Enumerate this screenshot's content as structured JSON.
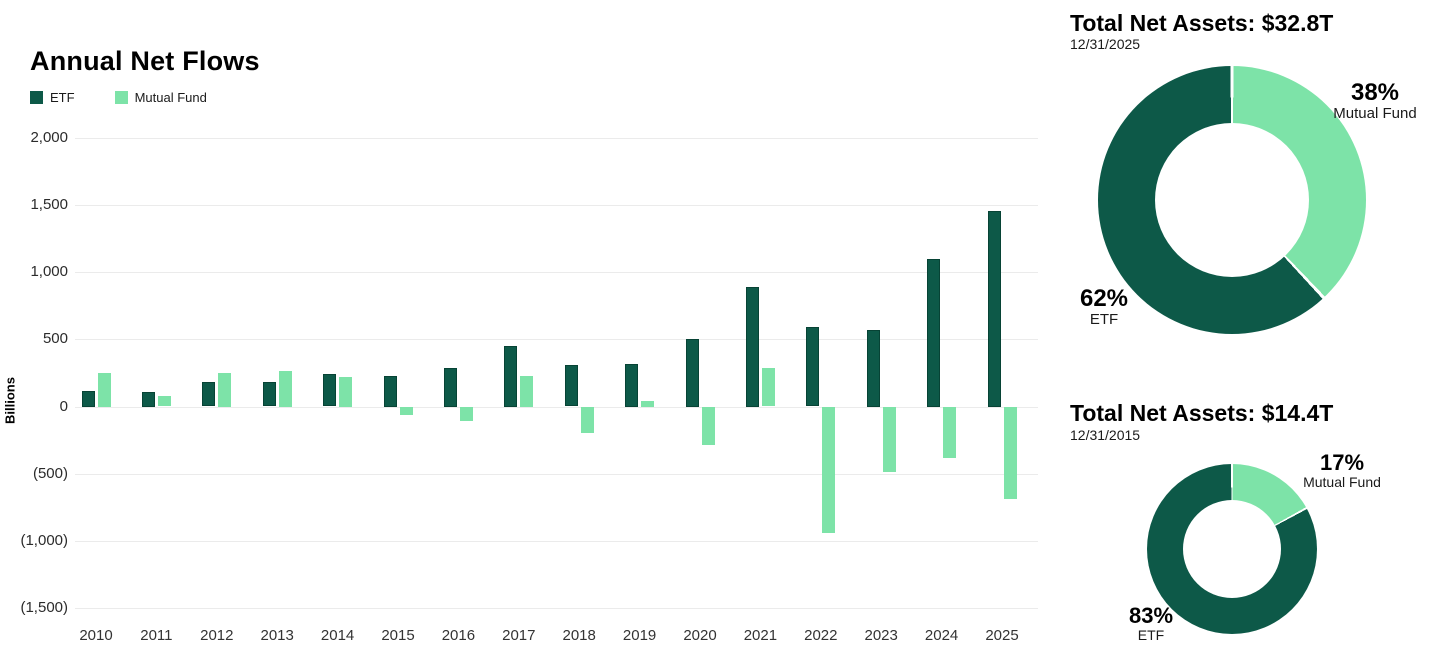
{
  "chart_data": [
    {
      "type": "bar",
      "title": "Annual Net Flows",
      "xlabel": "",
      "ylabel": "Billions",
      "ylim": [
        -1500,
        2000
      ],
      "grid": true,
      "legend_position": "top-left",
      "categories": [
        "2010",
        "2011",
        "2012",
        "2013",
        "2014",
        "2015",
        "2016",
        "2017",
        "2018",
        "2019",
        "2020",
        "2021",
        "2022",
        "2023",
        "2024",
        "2025"
      ],
      "series": [
        {
          "name": "ETF",
          "color": "#0d5948",
          "values": [
            120,
            110,
            185,
            185,
            240,
            230,
            285,
            455,
            310,
            320,
            505,
            890,
            590,
            570,
            1100,
            1455
          ]
        },
        {
          "name": "Mutual Fund",
          "color": "#7de3a8",
          "values": [
            250,
            80,
            250,
            265,
            220,
            -60,
            -105,
            230,
            -195,
            45,
            -290,
            290,
            -940,
            -490,
            -385,
            -690
          ]
        }
      ],
      "yticks": [
        {
          "value": 2000,
          "label": "2,000"
        },
        {
          "value": 1500,
          "label": "1,500"
        },
        {
          "value": 1000,
          "label": "1,000"
        },
        {
          "value": 500,
          "label": "500"
        },
        {
          "value": 0,
          "label": "0"
        },
        {
          "value": -500,
          "label": "(500)"
        },
        {
          "value": -1000,
          "label": "(1,000)"
        },
        {
          "value": -1500,
          "label": "(1,500)"
        }
      ]
    },
    {
      "type": "pie",
      "donut": true,
      "start": "top",
      "direction": "clockwise",
      "title": "Total Net Assets: $32.8T",
      "subtitle": "12/31/2025",
      "slices": [
        {
          "label": "Mutual Fund",
          "pct": 38,
          "pct_label": "38%",
          "color": "#7de3a8"
        },
        {
          "label": "ETF",
          "pct": 62,
          "pct_label": "62%",
          "color": "#0d5948"
        }
      ]
    },
    {
      "type": "pie",
      "donut": true,
      "start": "top",
      "direction": "clockwise",
      "title": "Total Net Assets: $14.4T",
      "subtitle": "12/31/2015",
      "slices": [
        {
          "label": "Mutual Fund",
          "pct": 17,
          "pct_label": "17%",
          "color": "#7de3a8"
        },
        {
          "label": "ETF",
          "pct": 83,
          "pct_label": "83%",
          "color": "#0d5948"
        }
      ]
    }
  ]
}
